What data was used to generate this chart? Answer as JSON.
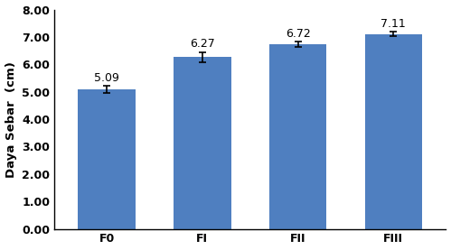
{
  "categories": [
    "F0",
    "FI",
    "FII",
    "FIII"
  ],
  "values": [
    5.09,
    6.27,
    6.72,
    7.11
  ],
  "errors": [
    0.12,
    0.18,
    0.1,
    0.08
  ],
  "bar_color": "#4F7FC0",
  "bar_edgecolor": "none",
  "ylabel": "Daya Sebar  (cm)",
  "ylim": [
    0,
    8.0
  ],
  "yticks": [
    0.0,
    1.0,
    2.0,
    3.0,
    4.0,
    5.0,
    6.0,
    7.0,
    8.0
  ],
  "ytick_labels": [
    "0.00",
    "1.00",
    "2.00",
    "3.00",
    "4.00",
    "5.00",
    "6.00",
    "7.00",
    "8.00"
  ],
  "label_fontsize": 9.5,
  "value_fontsize": 9,
  "tick_fontsize": 9,
  "bar_width": 0.6,
  "background_color": "#FFFFFF"
}
